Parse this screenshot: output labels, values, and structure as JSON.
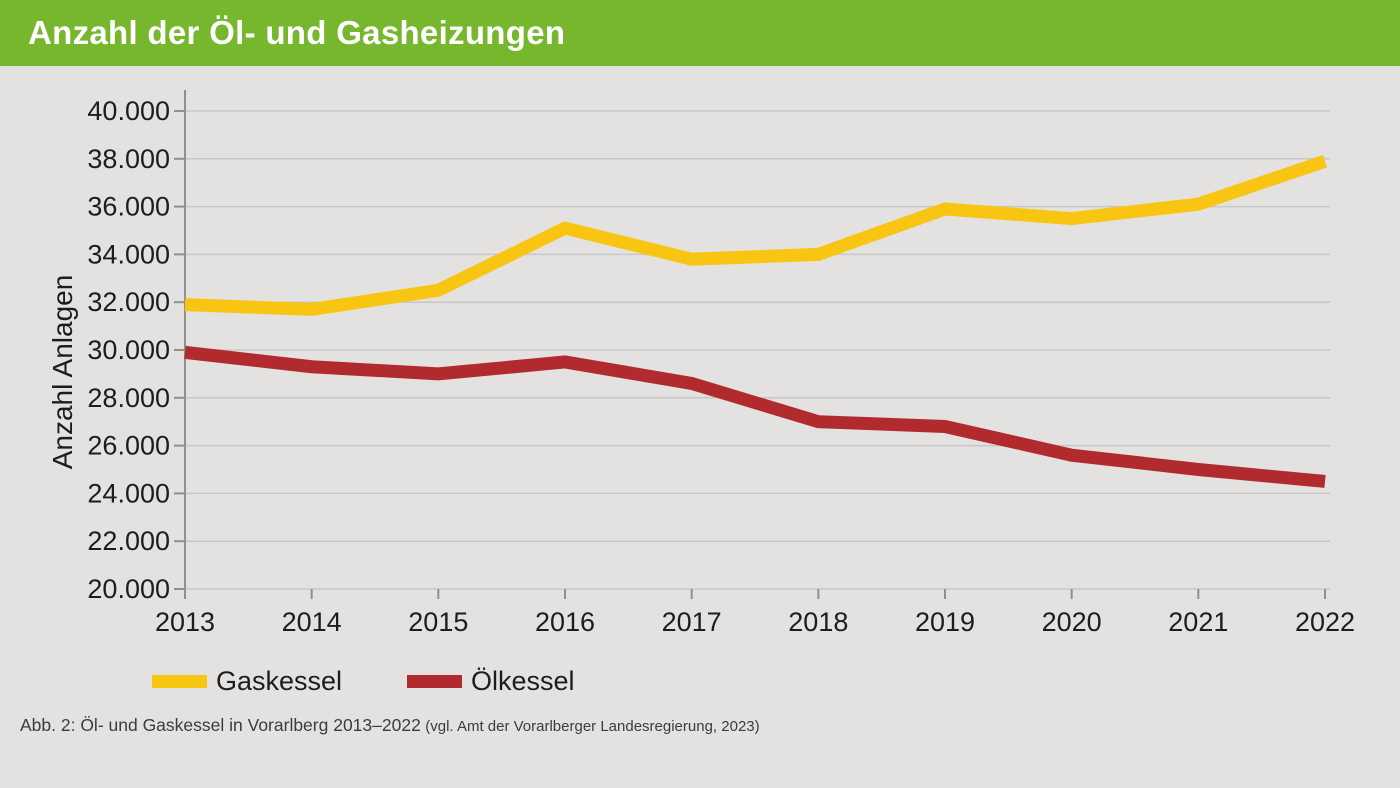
{
  "header": {
    "title": "Anzahl der Öl- und Gasheizungen"
  },
  "chart_data": {
    "type": "line",
    "title": "Anzahl der Öl- und Gasheizungen",
    "xlabel": "",
    "ylabel": "Anzahl Anlagen",
    "categories": [
      "2013",
      "2014",
      "2015",
      "2016",
      "2017",
      "2018",
      "2019",
      "2020",
      "2021",
      "2022"
    ],
    "series": [
      {
        "name": "Gaskessel",
        "color": "#F9C513",
        "values": [
          31900,
          31700,
          32500,
          35100,
          33800,
          34000,
          35900,
          35500,
          36100,
          37900
        ]
      },
      {
        "name": "Ölkessel",
        "color": "#B12B2E",
        "values": [
          29900,
          29300,
          29000,
          29500,
          28600,
          27000,
          26800,
          25600,
          25000,
          24500
        ]
      }
    ],
    "ylim": [
      20000,
      40000
    ],
    "ytick_step": 2000,
    "ytick_label_style": "german-thousands-dot",
    "grid": true,
    "legend_position": "bottom-left"
  },
  "legend": {
    "items": [
      {
        "label": "Gaskessel"
      },
      {
        "label": "Ölkessel"
      }
    ]
  },
  "caption": {
    "text": "Abb. 2: Öl- und Gaskessel in Vorarlberg 2013–2022",
    "source": "(vgl. Amt der Vorarlberger Landesregierung, 2023)"
  },
  "colors": {
    "header_green": "#76B72E",
    "title_text": "#FFFFFF",
    "background": "#E3E2E1",
    "gridline": "#C8C7C5",
    "axis": "#8F8F8D",
    "tick_label_text": "#1D1D1B",
    "caption_text": "#3C3C3B",
    "gaskessel_line": "#F9C513",
    "oelkessel_line": "#B12B2E"
  }
}
